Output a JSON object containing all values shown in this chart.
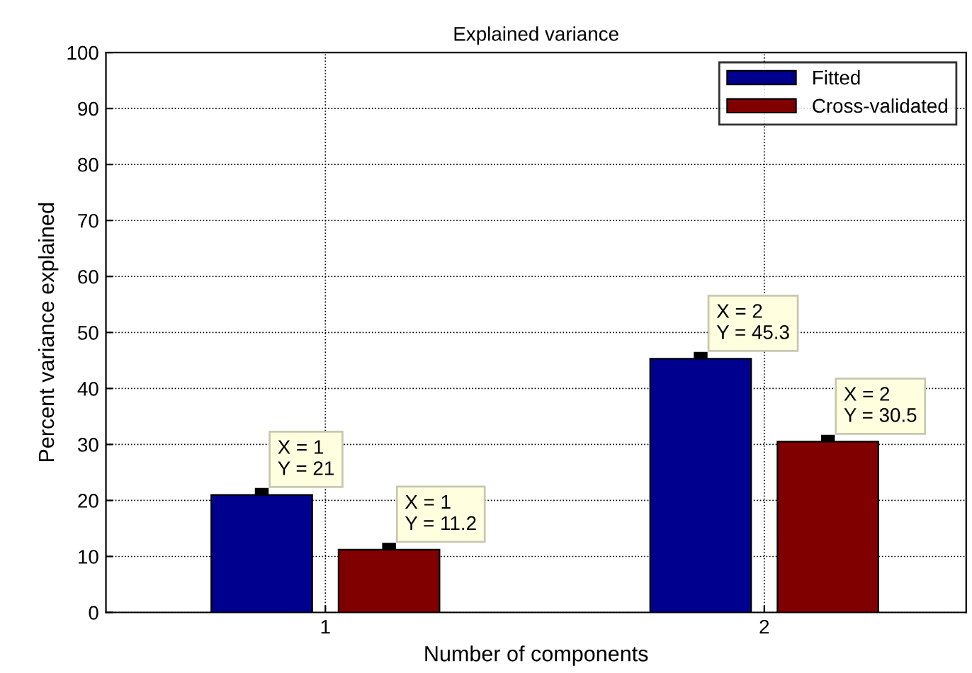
{
  "chart_data": {
    "type": "bar",
    "title": "Explained variance",
    "xlabel": "Number of components",
    "ylabel": "Percent variance explained",
    "categories": [
      "1",
      "2"
    ],
    "series": [
      {
        "name": "Fitted",
        "color": "#00008f",
        "values": [
          21,
          45.3
        ],
        "value_labels": [
          "X = 1\nY = 21",
          "X = 2\nY = 45.3"
        ]
      },
      {
        "name": "Cross-validated",
        "color": "#800000",
        "values": [
          11.2,
          30.5
        ],
        "value_labels": [
          "X = 1\nY = 11.2",
          "X = 2\nY = 30.5"
        ]
      }
    ],
    "ylim": [
      0,
      100
    ],
    "yticks": [
      0,
      10,
      20,
      30,
      40,
      50,
      60,
      70,
      80,
      90,
      100
    ],
    "grid": true,
    "legend": "top right",
    "marker": "square"
  }
}
